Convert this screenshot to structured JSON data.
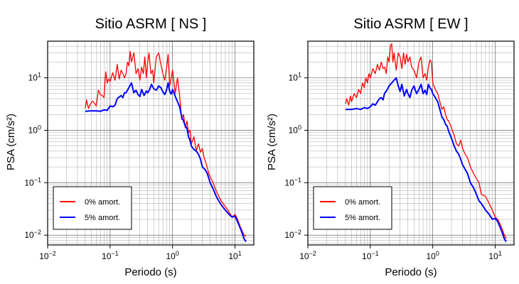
{
  "chart_data": [
    {
      "type": "line",
      "title": "Sitio ASRM [ NS ]",
      "xlabel": "Periodo (s)",
      "ylabel": "PSA (cm/s²)",
      "xscale": "log",
      "yscale": "log",
      "xlim": [
        0.01,
        20
      ],
      "ylim": [
        0.0065,
        50
      ],
      "xticks": [
        {
          "value": 0.01,
          "base": "10",
          "exp": "−2"
        },
        {
          "value": 0.1,
          "base": "10",
          "exp": "−1"
        },
        {
          "value": 1,
          "base": "10",
          "exp": "0"
        },
        {
          "value": 10,
          "base": "10",
          "exp": "1"
        }
      ],
      "yticks": [
        {
          "value": 0.01,
          "base": "10",
          "exp": "−2"
        },
        {
          "value": 0.1,
          "base": "10",
          "exp": "−1"
        },
        {
          "value": 1,
          "base": "10",
          "exp": "0"
        },
        {
          "value": 10,
          "base": "10",
          "exp": "1"
        }
      ],
      "grid": true,
      "legend_position": "bottom-left",
      "series": [
        {
          "name": "0% amort.",
          "color": "#ff0000",
          "x": [
            0.04,
            0.042,
            0.045,
            0.048,
            0.052,
            0.056,
            0.06,
            0.065,
            0.07,
            0.075,
            0.08,
            0.085,
            0.09,
            0.095,
            0.1,
            0.11,
            0.12,
            0.13,
            0.14,
            0.15,
            0.16,
            0.17,
            0.18,
            0.19,
            0.2,
            0.21,
            0.22,
            0.24,
            0.26,
            0.28,
            0.3,
            0.32,
            0.34,
            0.36,
            0.38,
            0.4,
            0.42,
            0.45,
            0.48,
            0.5,
            0.55,
            0.6,
            0.65,
            0.7,
            0.75,
            0.8,
            0.85,
            0.9,
            0.95,
            1.0,
            1.1,
            1.2,
            1.3,
            1.4,
            1.5,
            1.6,
            1.7,
            1.8,
            1.9,
            2.0,
            2.2,
            2.4,
            2.6,
            2.8,
            3.0,
            3.2,
            3.5,
            3.8,
            4.0,
            4.3,
            4.6,
            5.0,
            5.5,
            6.0,
            7.0,
            8.0,
            9.0,
            10.0,
            11.0,
            12.0,
            13.0,
            14.0,
            15.0
          ],
          "y": [
            2.6,
            3.8,
            2.6,
            3.1,
            3.6,
            3.3,
            2.9,
            5.8,
            4.8,
            4.6,
            4.2,
            13.0,
            8.0,
            9.5,
            8.5,
            12.5,
            9.0,
            18.0,
            9.5,
            14.0,
            12.0,
            10.0,
            12.0,
            20.0,
            17.0,
            32.0,
            20.0,
            30.0,
            12.0,
            15.0,
            9.0,
            16.0,
            12.0,
            25.0,
            10.0,
            20.0,
            30.0,
            12.0,
            14.0,
            8.0,
            25.0,
            30.0,
            18.0,
            12.0,
            9.0,
            15.0,
            28.0,
            7.0,
            10.0,
            14.0,
            5.0,
            10.0,
            4.5,
            1.6,
            2.0,
            1.1,
            1.5,
            0.9,
            1.0,
            0.55,
            0.75,
            0.4,
            0.55,
            0.38,
            0.45,
            0.3,
            0.22,
            0.15,
            0.13,
            0.11,
            0.09,
            0.07,
            0.055,
            0.045,
            0.035,
            0.028,
            0.022,
            0.025,
            0.02,
            0.015,
            0.012,
            0.01,
            0.0095
          ]
        },
        {
          "name": "5% amort.",
          "color": "#0000ff",
          "x": [
            0.04,
            0.05,
            0.06,
            0.07,
            0.08,
            0.09,
            0.1,
            0.11,
            0.12,
            0.13,
            0.14,
            0.15,
            0.16,
            0.17,
            0.18,
            0.2,
            0.22,
            0.24,
            0.26,
            0.28,
            0.3,
            0.32,
            0.35,
            0.38,
            0.4,
            0.43,
            0.46,
            0.5,
            0.55,
            0.6,
            0.65,
            0.7,
            0.75,
            0.8,
            0.85,
            0.9,
            0.95,
            1.0,
            1.1,
            1.2,
            1.3,
            1.4,
            1.5,
            1.6,
            1.7,
            1.8,
            1.9,
            2.0,
            2.2,
            2.4,
            2.6,
            2.8,
            3.0,
            3.3,
            3.6,
            4.0,
            4.5,
            5.0,
            5.5,
            6.0,
            7.0,
            8.0,
            9.0,
            10.0,
            11.0,
            12.0,
            13.0,
            14.0,
            15.0
          ],
          "y": [
            2.3,
            2.35,
            2.35,
            2.3,
            2.45,
            2.4,
            2.9,
            2.8,
            3.0,
            4.0,
            4.3,
            4.6,
            4.2,
            5.2,
            5.2,
            6.5,
            8.0,
            5.2,
            5.8,
            4.8,
            4.4,
            6.0,
            4.6,
            5.6,
            5.2,
            6.0,
            7.5,
            6.2,
            5.8,
            7.0,
            6.5,
            5.4,
            4.8,
            5.8,
            8.0,
            5.5,
            4.9,
            6.0,
            4.5,
            3.5,
            2.8,
            1.8,
            1.5,
            1.2,
            1.1,
            0.75,
            0.65,
            0.5,
            0.43,
            0.4,
            0.35,
            0.28,
            0.2,
            0.18,
            0.15,
            0.1,
            0.075,
            0.055,
            0.045,
            0.038,
            0.03,
            0.025,
            0.022,
            0.023,
            0.018,
            0.014,
            0.011,
            0.0085,
            0.0075
          ]
        }
      ]
    },
    {
      "type": "line",
      "title": "Sitio ASRM [ EW ]",
      "xlabel": "Periodo (s)",
      "ylabel": "PSA (cm/s²)",
      "xscale": "log",
      "yscale": "log",
      "xlim": [
        0.01,
        20
      ],
      "ylim": [
        0.0065,
        50
      ],
      "xticks": [
        {
          "value": 0.01,
          "base": "10",
          "exp": "−2"
        },
        {
          "value": 0.1,
          "base": "10",
          "exp": "−1"
        },
        {
          "value": 1,
          "base": "10",
          "exp": "0"
        },
        {
          "value": 10,
          "base": "10",
          "exp": "1"
        }
      ],
      "yticks": [
        {
          "value": 0.01,
          "base": "10",
          "exp": "−2"
        },
        {
          "value": 0.1,
          "base": "10",
          "exp": "−1"
        },
        {
          "value": 1,
          "base": "10",
          "exp": "0"
        },
        {
          "value": 10,
          "base": "10",
          "exp": "1"
        }
      ],
      "grid": true,
      "legend_position": "bottom-left",
      "series": [
        {
          "name": "0% amort.",
          "color": "#ff0000",
          "x": [
            0.04,
            0.042,
            0.045,
            0.048,
            0.05,
            0.055,
            0.06,
            0.065,
            0.07,
            0.075,
            0.08,
            0.085,
            0.09,
            0.095,
            0.1,
            0.11,
            0.12,
            0.13,
            0.14,
            0.15,
            0.16,
            0.17,
            0.18,
            0.19,
            0.2,
            0.21,
            0.22,
            0.23,
            0.24,
            0.26,
            0.28,
            0.3,
            0.32,
            0.34,
            0.36,
            0.38,
            0.4,
            0.43,
            0.46,
            0.5,
            0.55,
            0.6,
            0.65,
            0.7,
            0.75,
            0.8,
            0.85,
            0.9,
            0.95,
            1.0,
            1.1,
            1.2,
            1.3,
            1.4,
            1.5,
            1.6,
            1.7,
            1.8,
            2.0,
            2.2,
            2.4,
            2.6,
            2.8,
            3.0,
            3.3,
            3.6,
            4.0,
            4.5,
            5.0,
            5.5,
            6.0,
            7.0,
            8.0,
            9.0,
            10.0,
            11.0,
            12.0,
            13.0,
            14.0,
            15.0
          ],
          "y": [
            3.2,
            4.0,
            3.0,
            4.5,
            3.5,
            5.0,
            4.2,
            6.0,
            5.0,
            8.0,
            6.5,
            10.0,
            8.0,
            12.0,
            10.0,
            15.0,
            12.0,
            18.0,
            14.0,
            20.0,
            15.0,
            16.0,
            12.0,
            25.0,
            20.0,
            40.0,
            45.0,
            20.0,
            30.0,
            14.0,
            30.0,
            25.0,
            15.0,
            30.0,
            18.0,
            28.0,
            20.0,
            25.0,
            16.0,
            14.0,
            10.0,
            20.0,
            25.0,
            10.0,
            12.0,
            9.0,
            16.0,
            22.0,
            20.0,
            8.0,
            6.0,
            5.0,
            3.5,
            2.5,
            2.8,
            2.0,
            1.6,
            1.5,
            1.1,
            0.8,
            0.55,
            0.5,
            0.65,
            0.45,
            0.35,
            0.3,
            0.2,
            0.15,
            0.12,
            0.1,
            0.06,
            0.055,
            0.04,
            0.03,
            0.022,
            0.02,
            0.016,
            0.013,
            0.01,
            0.0085
          ]
        },
        {
          "name": "5% amort.",
          "color": "#0000ff",
          "x": [
            0.04,
            0.05,
            0.06,
            0.07,
            0.08,
            0.09,
            0.1,
            0.11,
            0.12,
            0.13,
            0.14,
            0.15,
            0.16,
            0.17,
            0.18,
            0.2,
            0.22,
            0.24,
            0.26,
            0.28,
            0.3,
            0.32,
            0.35,
            0.38,
            0.4,
            0.43,
            0.46,
            0.5,
            0.55,
            0.6,
            0.65,
            0.7,
            0.75,
            0.8,
            0.85,
            0.9,
            0.95,
            1.0,
            1.1,
            1.2,
            1.3,
            1.4,
            1.5,
            1.6,
            1.7,
            1.8,
            2.0,
            2.2,
            2.4,
            2.6,
            2.8,
            3.0,
            3.3,
            3.6,
            4.0,
            4.5,
            5.0,
            5.5,
            6.0,
            7.0,
            8.0,
            9.0,
            10.0,
            11.0,
            12.0,
            13.0,
            14.0,
            15.0
          ],
          "y": [
            2.5,
            2.5,
            2.6,
            2.5,
            2.7,
            2.6,
            2.8,
            3.2,
            3.0,
            3.5,
            4.0,
            4.2,
            3.8,
            5.2,
            5.5,
            7.0,
            8.0,
            9.0,
            10.0,
            7.0,
            5.5,
            7.5,
            4.5,
            6.0,
            5.0,
            4.2,
            5.8,
            7.0,
            5.0,
            6.0,
            7.5,
            5.0,
            5.8,
            4.8,
            7.5,
            6.5,
            6.0,
            5.0,
            4.2,
            3.5,
            2.5,
            1.8,
            1.6,
            1.3,
            1.2,
            0.95,
            0.7,
            0.5,
            0.4,
            0.35,
            0.28,
            0.22,
            0.18,
            0.15,
            0.1,
            0.08,
            0.06,
            0.045,
            0.04,
            0.03,
            0.025,
            0.02,
            0.021,
            0.018,
            0.014,
            0.011,
            0.0085,
            0.0075
          ]
        }
      ]
    }
  ]
}
